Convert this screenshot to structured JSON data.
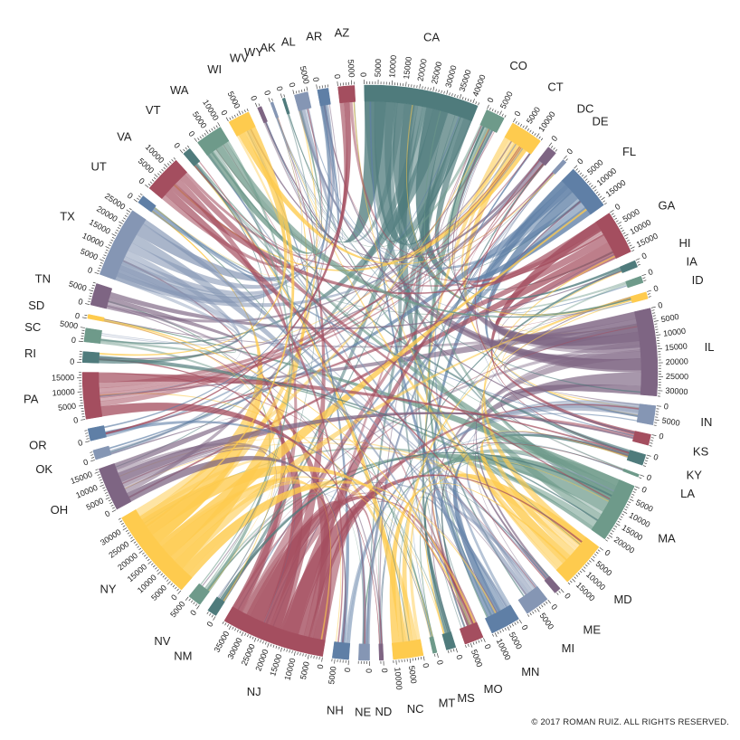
{
  "copyright": "© 2017 ROMAN RUIZ. ALL RIGHTS RESERVED.",
  "palette": [
    "#4f7b7c",
    "#6e9a8a",
    "#fecb4e",
    "#a44e5f",
    "#7e6583",
    "#8596b4",
    "#5f7fa6"
  ],
  "chart_data": {
    "type": "chord",
    "tick_step": 5000,
    "groups": [
      {
        "name": "CA",
        "value": 42000,
        "color": "#4f7b7c"
      },
      {
        "name": "CO",
        "value": 7000,
        "color": "#6e9a8a"
      },
      {
        "name": "CT",
        "value": 12000,
        "color": "#fecb4e"
      },
      {
        "name": "DC",
        "value": 3500,
        "color": "#7e6583"
      },
      {
        "name": "DE",
        "value": 1500,
        "color": "#8596b4"
      },
      {
        "name": "FL",
        "value": 17000,
        "color": "#5f7fa6"
      },
      {
        "name": "GA",
        "value": 16000,
        "color": "#a44e5f"
      },
      {
        "name": "HI",
        "value": 2500,
        "color": "#4f7b7c"
      },
      {
        "name": "IA",
        "value": 2500,
        "color": "#6e9a8a"
      },
      {
        "name": "ID",
        "value": 2500,
        "color": "#fecb4e"
      },
      {
        "name": "IL",
        "value": 32000,
        "color": "#7e6583"
      },
      {
        "name": "IN",
        "value": 7000,
        "color": "#8596b4"
      },
      {
        "name": "KS",
        "value": 4000,
        "color": "#a44e5f"
      },
      {
        "name": "KY",
        "value": 4000,
        "color": "#4f7b7c"
      },
      {
        "name": "LA",
        "value": 1000,
        "color": "#6e9a8a"
      },
      {
        "name": "MA",
        "value": 22000,
        "color": "#6e9a8a"
      },
      {
        "name": "MD",
        "value": 17000,
        "color": "#fecb4e"
      },
      {
        "name": "ME",
        "value": 2500,
        "color": "#7e6583"
      },
      {
        "name": "MI",
        "value": 9000,
        "color": "#8596b4"
      },
      {
        "name": "MN",
        "value": 11000,
        "color": "#5f7fa6"
      },
      {
        "name": "MO",
        "value": 7000,
        "color": "#a44e5f"
      },
      {
        "name": "MS",
        "value": 3500,
        "color": "#4f7b7c"
      },
      {
        "name": "MT",
        "value": 1500,
        "color": "#6e9a8a"
      },
      {
        "name": "NC",
        "value": 11000,
        "color": "#fecb4e"
      },
      {
        "name": "ND",
        "value": 1500,
        "color": "#7e6583"
      },
      {
        "name": "NE",
        "value": 4000,
        "color": "#8596b4"
      },
      {
        "name": "NH",
        "value": 6000,
        "color": "#5f7fa6"
      },
      {
        "name": "NJ",
        "value": 38000,
        "color": "#a44e5f"
      },
      {
        "name": "NM",
        "value": 3500,
        "color": "#4f7b7c"
      },
      {
        "name": "NV",
        "value": 5000,
        "color": "#6e9a8a"
      },
      {
        "name": "NY",
        "value": 34000,
        "color": "#fecb4e"
      },
      {
        "name": "OH",
        "value": 16000,
        "color": "#7e6583"
      },
      {
        "name": "OK",
        "value": 3500,
        "color": "#8596b4"
      },
      {
        "name": "OR",
        "value": 4500,
        "color": "#5f7fa6"
      },
      {
        "name": "PA",
        "value": 17000,
        "color": "#a44e5f"
      },
      {
        "name": "RI",
        "value": 4000,
        "color": "#4f7b7c"
      },
      {
        "name": "SC",
        "value": 5000,
        "color": "#6e9a8a"
      },
      {
        "name": "SD",
        "value": 1500,
        "color": "#fecb4e"
      },
      {
        "name": "TN",
        "value": 8000,
        "color": "#7e6583"
      },
      {
        "name": "TX",
        "value": 26000,
        "color": "#8596b4"
      },
      {
        "name": "UT",
        "value": 3000,
        "color": "#5f7fa6"
      },
      {
        "name": "VA",
        "value": 14000,
        "color": "#a44e5f"
      },
      {
        "name": "VT",
        "value": 3000,
        "color": "#4f7b7c"
      },
      {
        "name": "WA",
        "value": 10000,
        "color": "#6e9a8a"
      },
      {
        "name": "WI",
        "value": 8000,
        "color": "#fecb4e"
      },
      {
        "name": "WV",
        "value": 1500,
        "color": "#7e6583"
      },
      {
        "name": "WY",
        "value": 1000,
        "color": "#8596b4"
      },
      {
        "name": "AK",
        "value": 1000,
        "color": "#4f7b7c"
      },
      {
        "name": "AL",
        "value": 5000,
        "color": "#8596b4"
      },
      {
        "name": "AR",
        "value": 4000,
        "color": "#5f7fa6"
      },
      {
        "name": "AZ",
        "value": 6000,
        "color": "#a44e5f"
      }
    ]
  }
}
